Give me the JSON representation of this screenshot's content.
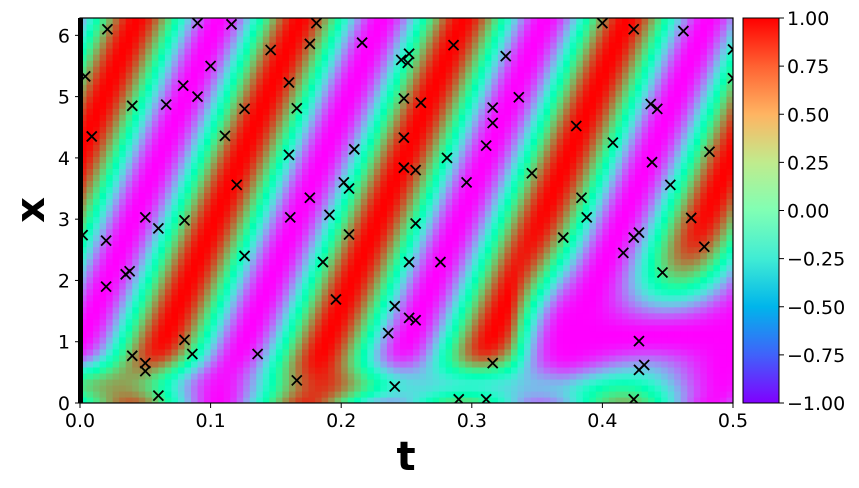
{
  "chart_data": {
    "type": "heatmap",
    "title": "",
    "xlabel": "t",
    "ylabel": "x",
    "xlim": [
      0.0,
      0.5
    ],
    "ylim": [
      0.0,
      6.283
    ],
    "x_ticks": [
      0.0,
      0.1,
      0.2,
      0.3,
      0.4,
      0.5
    ],
    "x_tick_labels": [
      "0.0",
      "0.1",
      "0.2",
      "0.3",
      "0.4",
      "0.5"
    ],
    "y_ticks": [
      0,
      1,
      2,
      3,
      4,
      5,
      6
    ],
    "y_tick_labels": [
      "0",
      "1",
      "2",
      "3",
      "4",
      "5",
      "6"
    ],
    "colormap": "rainbow",
    "colorbar": {
      "range": [
        -1.0,
        1.0
      ],
      "ticks": [
        1.0,
        0.75,
        0.5,
        0.25,
        0.0,
        -0.25,
        -0.5,
        -0.75,
        -1.0
      ],
      "tick_labels": [
        "1.00",
        "0.75",
        "0.50",
        "0.25",
        "0.00",
        "−0.25",
        "−0.50",
        "−0.75",
        "−1.00"
      ]
    },
    "grid": false,
    "field": "u(t,x) approx cos(x - 2*pi*(1+t*...)) traveling waves, bands shifting upward with t",
    "markers": {
      "symbol": "x",
      "color": "#000000",
      "points": [
        [
          0.004,
          5.33
        ],
        [
          0.009,
          4.35
        ],
        [
          0.021,
          6.1
        ],
        [
          0.002,
          2.74
        ],
        [
          0.02,
          2.65
        ],
        [
          0.02,
          1.9
        ],
        [
          0.035,
          2.1
        ],
        [
          0.038,
          2.15
        ],
        [
          0.04,
          4.85
        ],
        [
          0.04,
          0.77
        ],
        [
          0.05,
          0.65
        ],
        [
          0.05,
          3.03
        ],
        [
          0.05,
          0.52
        ],
        [
          0.06,
          2.85
        ],
        [
          0.06,
          0.12
        ],
        [
          0.066,
          4.87
        ],
        [
          0.079,
          5.18
        ],
        [
          0.08,
          2.98
        ],
        [
          0.08,
          1.03
        ],
        [
          0.086,
          0.8
        ],
        [
          0.09,
          6.2
        ],
        [
          0.09,
          5.0
        ],
        [
          0.1,
          5.5
        ],
        [
          0.111,
          4.36
        ],
        [
          0.116,
          6.18
        ],
        [
          0.12,
          3.56
        ],
        [
          0.126,
          4.8
        ],
        [
          0.126,
          2.4
        ],
        [
          0.136,
          0.8
        ],
        [
          0.146,
          5.76
        ],
        [
          0.16,
          5.23
        ],
        [
          0.16,
          4.05
        ],
        [
          0.161,
          3.03
        ],
        [
          0.166,
          4.81
        ],
        [
          0.166,
          0.37
        ],
        [
          0.176,
          5.86
        ],
        [
          0.176,
          3.35
        ],
        [
          0.181,
          6.2
        ],
        [
          0.186,
          2.3
        ],
        [
          0.191,
          3.07
        ],
        [
          0.196,
          1.69
        ],
        [
          0.202,
          3.6
        ],
        [
          0.206,
          2.75
        ],
        [
          0.206,
          3.5
        ],
        [
          0.21,
          4.14
        ],
        [
          0.216,
          5.88
        ],
        [
          0.236,
          1.14
        ],
        [
          0.241,
          1.58
        ],
        [
          0.241,
          0.27
        ],
        [
          0.246,
          5.6
        ],
        [
          0.248,
          4.97
        ],
        [
          0.248,
          4.33
        ],
        [
          0.248,
          3.84
        ],
        [
          0.251,
          5.55
        ],
        [
          0.252,
          5.7
        ],
        [
          0.252,
          2.3
        ],
        [
          0.252,
          1.39
        ],
        [
          0.257,
          3.8
        ],
        [
          0.257,
          2.93
        ],
        [
          0.257,
          1.35
        ],
        [
          0.261,
          4.9
        ],
        [
          0.276,
          2.3
        ],
        [
          0.281,
          4.0
        ],
        [
          0.286,
          5.84
        ],
        [
          0.29,
          0.06
        ],
        [
          0.296,
          3.6
        ],
        [
          0.311,
          4.2
        ],
        [
          0.311,
          0.06
        ],
        [
          0.316,
          4.82
        ],
        [
          0.316,
          4.57
        ],
        [
          0.316,
          0.65
        ],
        [
          0.326,
          5.66
        ],
        [
          0.336,
          4.99
        ],
        [
          0.346,
          3.75
        ],
        [
          0.37,
          2.7
        ],
        [
          0.38,
          4.52
        ],
        [
          0.384,
          3.35
        ],
        [
          0.388,
          3.03
        ],
        [
          0.4,
          6.2
        ],
        [
          0.408,
          4.25
        ],
        [
          0.416,
          2.45
        ],
        [
          0.424,
          6.1
        ],
        [
          0.424,
          2.7
        ],
        [
          0.424,
          0.06
        ],
        [
          0.428,
          1.01
        ],
        [
          0.428,
          2.78
        ],
        [
          0.428,
          0.54
        ],
        [
          0.432,
          0.62
        ],
        [
          0.437,
          4.88
        ],
        [
          0.438,
          3.93
        ],
        [
          0.442,
          4.8
        ],
        [
          0.446,
          2.13
        ],
        [
          0.452,
          3.56
        ],
        [
          0.462,
          6.07
        ],
        [
          0.468,
          3.02
        ],
        [
          0.478,
          2.55
        ],
        [
          0.482,
          4.1
        ],
        [
          0.5,
          5.77
        ],
        [
          0.5,
          5.3
        ]
      ]
    }
  }
}
